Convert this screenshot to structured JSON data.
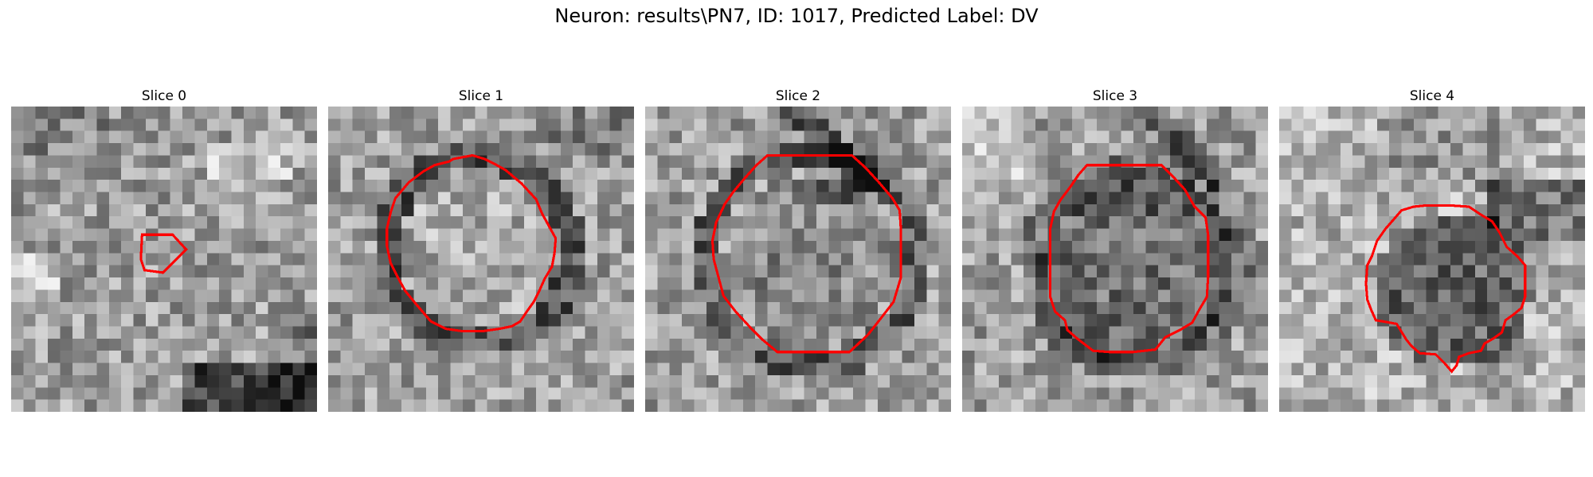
{
  "figure": {
    "title": "Neuron: results\\PN7, ID: 1017, Predicted Label: DV"
  },
  "contour_color": "#ff0000",
  "slices": [
    {
      "title": "Slice 0",
      "grid_size": 25
    },
    {
      "title": "Slice 1",
      "grid_size": 25
    },
    {
      "title": "Slice 2",
      "grid_size": 25
    },
    {
      "title": "Slice 3",
      "grid_size": 25
    },
    {
      "title": "Slice 4",
      "grid_size": 25
    }
  ]
}
